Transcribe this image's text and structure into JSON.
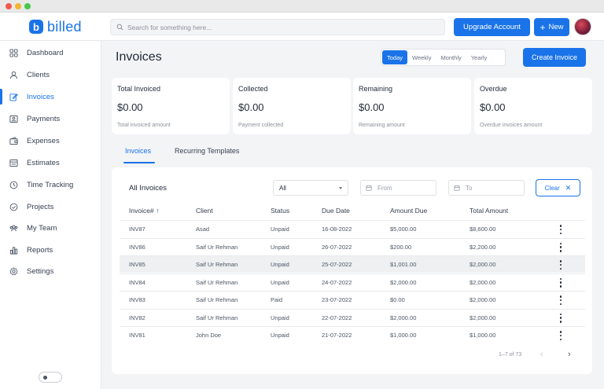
{
  "app": {
    "name": "billed",
    "logo_letter": "b",
    "accent": "#1a73e8"
  },
  "topbar": {
    "search_placeholder": "Search for something here...",
    "upgrade_label": "Upgrade Account",
    "new_label": "New"
  },
  "sidebar": {
    "items": [
      {
        "label": "Dashboard",
        "icon": "grid-icon"
      },
      {
        "label": "Clients",
        "icon": "user-icon"
      },
      {
        "label": "Invoices",
        "icon": "edit-icon",
        "active": true
      },
      {
        "label": "Payments",
        "icon": "payment-icon"
      },
      {
        "label": "Expenses",
        "icon": "wallet-icon"
      },
      {
        "label": "Estimates",
        "icon": "estimate-icon"
      },
      {
        "label": "Time Tracking",
        "icon": "clock-icon"
      },
      {
        "label": "Projects",
        "icon": "check-circle-icon"
      },
      {
        "label": "My Team",
        "icon": "team-icon"
      },
      {
        "label": "Reports",
        "icon": "chart-icon"
      },
      {
        "label": "Settings",
        "icon": "gear-icon"
      }
    ]
  },
  "page": {
    "title": "Invoices",
    "periods": [
      "Today",
      "Weekly",
      "Monthly",
      "Yearly"
    ],
    "active_period": "Today",
    "create_label": "Create Invoice"
  },
  "cards": [
    {
      "title": "Total Invoiced",
      "value": "$0.00",
      "sub": "Total invoiced amount"
    },
    {
      "title": "Collected",
      "value": "$0.00",
      "sub": "Payment collected"
    },
    {
      "title": "Remaining",
      "value": "$0.00",
      "sub": "Remaining amount"
    },
    {
      "title": "Overdue",
      "value": "$0.00",
      "sub": "Overdue invoices amount"
    }
  ],
  "tabs": [
    "Invoices",
    "Recurring Templates"
  ],
  "table": {
    "title": "All Invoices",
    "filter_value": "All",
    "from_placeholder": "From",
    "to_placeholder": "To",
    "clear_label": "Clear",
    "columns": [
      "Invoice#",
      "Client",
      "Status",
      "Due Date",
      "Amount Due",
      "Total Amount"
    ],
    "sort_indicator": "↑",
    "rows": [
      [
        "INV87",
        "Asad",
        "Unpaid",
        "16-08-2022",
        "$5,000.00",
        "$8,600.00"
      ],
      [
        "INV86",
        "Saif Ur Rehman",
        "Unpaid",
        "26-07-2022",
        "$200.00",
        "$2,200.00"
      ],
      [
        "INV85",
        "Saif Ur Rehman",
        "Unpaid",
        "25-07-2022",
        "$1,001.00",
        "$2,000.00"
      ],
      [
        "INV84",
        "Saif Ur Rehman",
        "Unpaid",
        "24-07-2022",
        "$2,000.00",
        "$2,000.00"
      ],
      [
        "INV83",
        "Saif Ur Rehman",
        "Paid",
        "23-07-2022",
        "$0.00",
        "$2,000.00"
      ],
      [
        "INV82",
        "Saif Ur Rehman",
        "Unpaid",
        "22-07-2022",
        "$2,000.00",
        "$2,000.00"
      ],
      [
        "INV81",
        "John Doe",
        "Unpaid",
        "21-07-2022",
        "$1,000.00",
        "$1,000.00"
      ]
    ],
    "highlighted_row": 2,
    "pagination": "1–7 of 73"
  }
}
